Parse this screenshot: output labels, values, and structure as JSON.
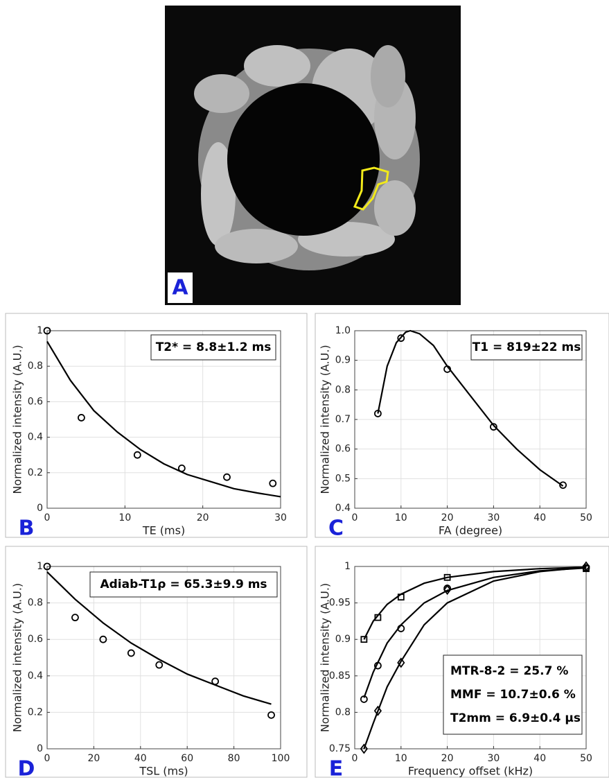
{
  "image": {
    "label": "A"
  },
  "chart_data": [
    {
      "type": "line",
      "panel_label": "B",
      "annotation": [
        "T2* = 8.8±1.2 ms"
      ],
      "xlabel": "TE (ms)",
      "ylabel": "Normalized intensity (A.U.)",
      "xlim": [
        0,
        30
      ],
      "xticks": [
        0,
        10,
        20,
        30
      ],
      "ylim": [
        0,
        1
      ],
      "yticks": [
        0,
        0.2,
        0.4,
        0.6,
        0.8,
        1
      ],
      "grid": true,
      "series": [
        {
          "color": "#000000",
          "marker": "circle",
          "x": [
            0,
            4.4,
            11.6,
            17.3,
            23.1,
            29
          ],
          "values": [
            1,
            0.51,
            0.3,
            0.225,
            0.175,
            0.14
          ],
          "fit_x": [
            0,
            3,
            6,
            9,
            12,
            15,
            18,
            21,
            24,
            27,
            30
          ],
          "fit_values": [
            0.94,
            0.72,
            0.55,
            0.43,
            0.33,
            0.25,
            0.19,
            0.15,
            0.11,
            0.086,
            0.065
          ]
        }
      ]
    },
    {
      "type": "line",
      "panel_label": "C",
      "annotation": [
        "T1 = 819±22 ms"
      ],
      "xlabel": "FA (degree)",
      "ylabel": "Normalized intensity (A.U.)",
      "xlim": [
        0,
        50
      ],
      "xticks": [
        0,
        10,
        20,
        30,
        40,
        50
      ],
      "ylim": [
        0.4,
        1
      ],
      "yticks": [
        0.4,
        0.5,
        0.6,
        0.7,
        0.8,
        0.9,
        {
          "value": 1,
          "label": "1.0"
        }
      ],
      "grid": true,
      "series": [
        {
          "color": "#000000",
          "marker": "circle",
          "x": [
            5,
            10,
            20,
            30,
            45
          ],
          "values": [
            0.72,
            0.975,
            0.87,
            0.675,
            0.478
          ],
          "fit_x": [
            5,
            7,
            9,
            11,
            12,
            14,
            17,
            20,
            25,
            30,
            35,
            40,
            45
          ],
          "fit_values": [
            0.72,
            0.88,
            0.96,
            0.995,
            1,
            0.99,
            0.95,
            0.88,
            0.78,
            0.68,
            0.6,
            0.53,
            0.475
          ]
        }
      ]
    },
    {
      "type": "line",
      "panel_label": "D",
      "annotation": [
        "Adiab-T1ρ = 65.3±9.9 ms"
      ],
      "xlabel": "TSL (ms)",
      "ylabel": "Normalized intensity (A.U.)",
      "xlim": [
        0,
        100
      ],
      "xticks": [
        0,
        20,
        40,
        60,
        80,
        100
      ],
      "ylim": [
        0,
        1
      ],
      "yticks": [
        0,
        0.2,
        0.4,
        0.6,
        0.8,
        1
      ],
      "grid": true,
      "series": [
        {
          "color": "#000000",
          "marker": "circle",
          "x": [
            0,
            12,
            24,
            36,
            48,
            72,
            96
          ],
          "values": [
            1,
            0.72,
            0.6,
            0.525,
            0.46,
            0.37,
            0.185
          ],
          "fit_x": [
            0,
            12,
            24,
            36,
            48,
            60,
            72,
            84,
            96
          ],
          "fit_values": [
            0.97,
            0.82,
            0.69,
            0.58,
            0.49,
            0.41,
            0.35,
            0.29,
            0.245
          ]
        }
      ]
    },
    {
      "type": "line",
      "panel_label": "E",
      "annotation": [
        "MTR-8-2 = 25.7 %",
        "MMF = 10.7±0.6 %",
        "T2mm = 6.9±0.4 µs"
      ],
      "xlabel": "Frequency offset (kHz)",
      "ylabel": "Normalized intensity (A.U.)",
      "xlim": [
        0,
        50
      ],
      "xticks": [
        0,
        10,
        20,
        30,
        40,
        50
      ],
      "ylim": [
        0.75,
        1
      ],
      "yticks": [
        0.75,
        0.8,
        0.85,
        0.9,
        0.95,
        1
      ],
      "grid": true,
      "series": [
        {
          "color": "#000000",
          "marker": "square",
          "x": [
            2,
            5,
            10,
            20,
            50
          ],
          "values": [
            0.9,
            0.93,
            0.958,
            0.985,
            0.997
          ],
          "fit_x": [
            2,
            4,
            7,
            10,
            15,
            20,
            30,
            40,
            50
          ],
          "fit_values": [
            0.9,
            0.925,
            0.948,
            0.962,
            0.977,
            0.985,
            0.993,
            0.997,
            0.999
          ]
        },
        {
          "color": "#000000",
          "marker": "circle",
          "x": [
            2,
            5,
            10,
            20,
            50
          ],
          "values": [
            0.818,
            0.864,
            0.915,
            0.97,
            0.998
          ],
          "fit_x": [
            2,
            4,
            7,
            10,
            15,
            20,
            30,
            40,
            50
          ],
          "fit_values": [
            0.82,
            0.855,
            0.895,
            0.92,
            0.95,
            0.967,
            0.985,
            0.994,
            0.998
          ]
        },
        {
          "color": "#000000",
          "marker": "diamond",
          "x": [
            2,
            5,
            10,
            20,
            50
          ],
          "values": [
            0.75,
            0.802,
            0.868,
            0.968,
            1
          ],
          "fit_x": [
            2,
            4,
            7,
            10,
            15,
            20,
            30,
            40,
            50
          ],
          "fit_values": [
            0.75,
            0.785,
            0.835,
            0.87,
            0.92,
            0.95,
            0.98,
            0.993,
            0.999
          ]
        }
      ]
    }
  ]
}
